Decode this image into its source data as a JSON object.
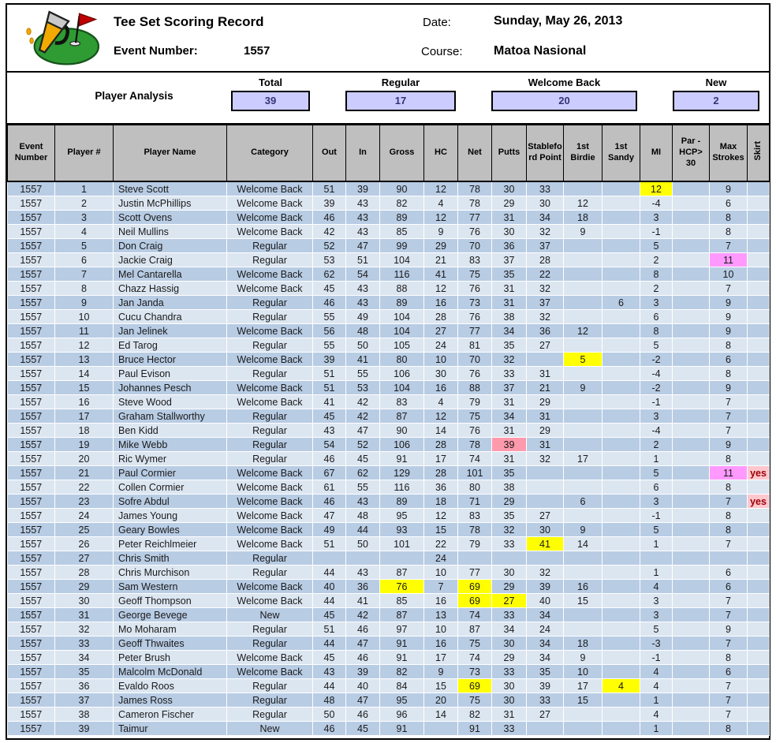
{
  "header": {
    "title": "Tee Set Scoring Record",
    "event_label": "Event Number:",
    "event_number": "1557",
    "date_label": "Date:",
    "date_value": "Sunday, May 26, 2013",
    "course_label": "Course:",
    "course_value": "Matoa Nasional",
    "logo_icon": "golf-green-with-flag-and-spilled-beer"
  },
  "analysis": {
    "title": "Player Analysis",
    "stats": [
      {
        "label": "Total",
        "value": "39"
      },
      {
        "label": "Regular",
        "value": "17"
      },
      {
        "label": "Welcome Back",
        "value": "20"
      },
      {
        "label": "New",
        "value": "2"
      }
    ]
  },
  "colors": {
    "stat_box_bg": "#CCCCFF",
    "stat_value_text": "#333377",
    "header_cell_bg": "#BFBFBF",
    "row_dark": "#B8CCE4",
    "row_light": "#DCE6F1",
    "highlight_yellow": "#FFFF00",
    "highlight_magenta": "#FF99FF",
    "highlight_rose": "#FF99AC",
    "skirt_yes_bg": "#FFC7CE",
    "skirt_yes_text": "#9C0006"
  },
  "table": {
    "columns": [
      "Event Number",
      "Player #",
      "Player Name",
      "Category",
      "Out",
      "In",
      "Gross",
      "HC",
      "Net",
      "Putts",
      "Stableford Point",
      "1st Birdie",
      "1st Sandy",
      "MI",
      "Par - HCP> 30",
      "Max Strokes",
      "Skirt"
    ],
    "col_keys": [
      "event-number",
      "player-num",
      "player-name",
      "category",
      "out",
      "in",
      "gross",
      "hc",
      "net",
      "putts",
      "stableford-point",
      "first-birdie",
      "first-sandy",
      "mi",
      "par-hcp-30",
      "max-strokes",
      "skirt"
    ],
    "rows": [
      [
        "1557",
        "1",
        "Steve Scott",
        "Welcome Back",
        "51",
        "39",
        "90",
        "12",
        "78",
        "30",
        "33",
        "",
        "",
        "12",
        "",
        "9",
        ""
      ],
      [
        "1557",
        "2",
        "Justin McPhillips",
        "Welcome Back",
        "39",
        "43",
        "82",
        "4",
        "78",
        "29",
        "30",
        "12",
        "",
        "-4",
        "",
        "6",
        ""
      ],
      [
        "1557",
        "3",
        "Scott Ovens",
        "Welcome Back",
        "46",
        "43",
        "89",
        "12",
        "77",
        "31",
        "34",
        "18",
        "",
        "3",
        "",
        "8",
        ""
      ],
      [
        "1557",
        "4",
        "Neil Mullins",
        "Welcome Back",
        "42",
        "43",
        "85",
        "9",
        "76",
        "30",
        "32",
        "9",
        "",
        "-1",
        "",
        "8",
        ""
      ],
      [
        "1557",
        "5",
        "Don Craig",
        "Regular",
        "52",
        "47",
        "99",
        "29",
        "70",
        "36",
        "37",
        "",
        "",
        "5",
        "",
        "7",
        ""
      ],
      [
        "1557",
        "6",
        "Jackie Craig",
        "Regular",
        "53",
        "51",
        "104",
        "21",
        "83",
        "37",
        "28",
        "",
        "",
        "2",
        "",
        "11",
        ""
      ],
      [
        "1557",
        "7",
        "Mel Cantarella",
        "Welcome Back",
        "62",
        "54",
        "116",
        "41",
        "75",
        "35",
        "22",
        "",
        "",
        "8",
        "",
        "10",
        ""
      ],
      [
        "1557",
        "8",
        "Chazz Hassig",
        "Welcome Back",
        "45",
        "43",
        "88",
        "12",
        "76",
        "31",
        "32",
        "",
        "",
        "2",
        "",
        "7",
        ""
      ],
      [
        "1557",
        "9",
        "Jan Janda",
        "Regular",
        "46",
        "43",
        "89",
        "16",
        "73",
        "31",
        "37",
        "",
        "6",
        "3",
        "",
        "9",
        ""
      ],
      [
        "1557",
        "10",
        "Cucu Chandra",
        "Regular",
        "55",
        "49",
        "104",
        "28",
        "76",
        "38",
        "32",
        "",
        "",
        "6",
        "",
        "9",
        ""
      ],
      [
        "1557",
        "11",
        "Jan Jelinek",
        "Welcome Back",
        "56",
        "48",
        "104",
        "27",
        "77",
        "34",
        "36",
        "12",
        "",
        "8",
        "",
        "9",
        ""
      ],
      [
        "1557",
        "12",
        "Ed Tarog",
        "Regular",
        "55",
        "50",
        "105",
        "24",
        "81",
        "35",
        "27",
        "",
        "",
        "5",
        "",
        "8",
        ""
      ],
      [
        "1557",
        "13",
        "Bruce Hector",
        "Welcome Back",
        "39",
        "41",
        "80",
        "10",
        "70",
        "32",
        "",
        "5",
        "",
        "-2",
        "",
        "6",
        ""
      ],
      [
        "1557",
        "14",
        "Paul Evison",
        "Regular",
        "51",
        "55",
        "106",
        "30",
        "76",
        "33",
        "31",
        "",
        "",
        "-4",
        "",
        "8",
        ""
      ],
      [
        "1557",
        "15",
        "Johannes Pesch",
        "Welcome Back",
        "51",
        "53",
        "104",
        "16",
        "88",
        "37",
        "21",
        "9",
        "",
        "-2",
        "",
        "9",
        ""
      ],
      [
        "1557",
        "16",
        "Steve Wood",
        "Welcome Back",
        "41",
        "42",
        "83",
        "4",
        "79",
        "31",
        "29",
        "",
        "",
        "-1",
        "",
        "7",
        ""
      ],
      [
        "1557",
        "17",
        "Graham Stallworthy",
        "Regular",
        "45",
        "42",
        "87",
        "12",
        "75",
        "34",
        "31",
        "",
        "",
        "3",
        "",
        "7",
        ""
      ],
      [
        "1557",
        "18",
        "Ben Kidd",
        "Regular",
        "43",
        "47",
        "90",
        "14",
        "76",
        "31",
        "29",
        "",
        "",
        "-4",
        "",
        "7",
        ""
      ],
      [
        "1557",
        "19",
        "Mike Webb",
        "Regular",
        "54",
        "52",
        "106",
        "28",
        "78",
        "39",
        "31",
        "",
        "",
        "2",
        "",
        "9",
        ""
      ],
      [
        "1557",
        "20",
        "Ric Wymer",
        "Regular",
        "46",
        "45",
        "91",
        "17",
        "74",
        "31",
        "32",
        "17",
        "",
        "1",
        "",
        "8",
        ""
      ],
      [
        "1557",
        "21",
        "Paul Cormier",
        "Welcome Back",
        "67",
        "62",
        "129",
        "28",
        "101",
        "35",
        "",
        "",
        "",
        "5",
        "",
        "11",
        "yes"
      ],
      [
        "1557",
        "22",
        "Collen Cormier",
        "Welcome Back",
        "61",
        "55",
        "116",
        "36",
        "80",
        "38",
        "",
        "",
        "",
        "6",
        "",
        "8",
        ""
      ],
      [
        "1557",
        "23",
        "Sofre Abdul",
        "Welcome Back",
        "46",
        "43",
        "89",
        "18",
        "71",
        "29",
        "",
        "6",
        "",
        "3",
        "",
        "7",
        "yes"
      ],
      [
        "1557",
        "24",
        "James Young",
        "Welcome Back",
        "47",
        "48",
        "95",
        "12",
        "83",
        "35",
        "27",
        "",
        "",
        "-1",
        "",
        "8",
        ""
      ],
      [
        "1557",
        "25",
        "Geary Bowles",
        "Welcome Back",
        "49",
        "44",
        "93",
        "15",
        "78",
        "32",
        "30",
        "9",
        "",
        "5",
        "",
        "8",
        ""
      ],
      [
        "1557",
        "26",
        "Peter Reichlmeier",
        "Welcome Back",
        "51",
        "50",
        "101",
        "22",
        "79",
        "33",
        "41",
        "14",
        "",
        "1",
        "",
        "7",
        ""
      ],
      [
        "1557",
        "27",
        "Chris Smith",
        "Regular",
        "",
        "",
        "",
        "24",
        "",
        "",
        "",
        "",
        "",
        "",
        "",
        "",
        ""
      ],
      [
        "1557",
        "28",
        "Chris Murchison",
        "Regular",
        "44",
        "43",
        "87",
        "10",
        "77",
        "30",
        "32",
        "",
        "",
        "1",
        "",
        "6",
        ""
      ],
      [
        "1557",
        "29",
        "Sam Western",
        "Welcome Back",
        "40",
        "36",
        "76",
        "7",
        "69",
        "29",
        "39",
        "16",
        "",
        "4",
        "",
        "6",
        ""
      ],
      [
        "1557",
        "30",
        "Geoff Thompson",
        "Welcome Back",
        "44",
        "41",
        "85",
        "16",
        "69",
        "27",
        "40",
        "15",
        "",
        "3",
        "",
        "7",
        ""
      ],
      [
        "1557",
        "31",
        "George Bevege",
        "New",
        "45",
        "42",
        "87",
        "13",
        "74",
        "33",
        "34",
        "",
        "",
        "3",
        "",
        "7",
        ""
      ],
      [
        "1557",
        "32",
        "Mo Moharam",
        "Regular",
        "51",
        "46",
        "97",
        "10",
        "87",
        "34",
        "24",
        "",
        "",
        "5",
        "",
        "9",
        ""
      ],
      [
        "1557",
        "33",
        "Geoff Thwaites",
        "Regular",
        "44",
        "47",
        "91",
        "16",
        "75",
        "30",
        "34",
        "18",
        "",
        "-3",
        "",
        "7",
        ""
      ],
      [
        "1557",
        "34",
        "Peter Brush",
        "Welcome Back",
        "45",
        "46",
        "91",
        "17",
        "74",
        "29",
        "34",
        "9",
        "",
        "-1",
        "",
        "8",
        ""
      ],
      [
        "1557",
        "35",
        "Malcolm McDonald",
        "Welcome Back",
        "43",
        "39",
        "82",
        "9",
        "73",
        "33",
        "35",
        "10",
        "",
        "4",
        "",
        "6",
        ""
      ],
      [
        "1557",
        "36",
        "Evaldo Roos",
        "Regular",
        "44",
        "40",
        "84",
        "15",
        "69",
        "30",
        "39",
        "17",
        "4",
        "4",
        "",
        "7",
        ""
      ],
      [
        "1557",
        "37",
        "James Ross",
        "Regular",
        "48",
        "47",
        "95",
        "20",
        "75",
        "30",
        "33",
        "15",
        "",
        "1",
        "",
        "7",
        ""
      ],
      [
        "1557",
        "38",
        "Cameron Fischer",
        "Regular",
        "50",
        "46",
        "96",
        "14",
        "82",
        "31",
        "27",
        "",
        "",
        "4",
        "",
        "7",
        ""
      ],
      [
        "1557",
        "39",
        "Taimur",
        "New",
        "46",
        "45",
        "91",
        "",
        "91",
        "33",
        "",
        "",
        "",
        "1",
        "",
        "8",
        ""
      ]
    ],
    "highlights": [
      {
        "r": 0,
        "c": 13,
        "style": "yellow"
      },
      {
        "r": 5,
        "c": 15,
        "style": "magenta"
      },
      {
        "r": 12,
        "c": 11,
        "style": "yellow"
      },
      {
        "r": 18,
        "c": 9,
        "style": "rose"
      },
      {
        "r": 20,
        "c": 15,
        "style": "magenta"
      },
      {
        "r": 20,
        "c": 16,
        "style": "bad"
      },
      {
        "r": 22,
        "c": 16,
        "style": "bad"
      },
      {
        "r": 25,
        "c": 10,
        "style": "yellow"
      },
      {
        "r": 28,
        "c": 6,
        "style": "yellow"
      },
      {
        "r": 28,
        "c": 8,
        "style": "yellow"
      },
      {
        "r": 29,
        "c": 8,
        "style": "yellow"
      },
      {
        "r": 29,
        "c": 9,
        "style": "yellow"
      },
      {
        "r": 35,
        "c": 8,
        "style": "yellow"
      },
      {
        "r": 35,
        "c": 12,
        "style": "yellow"
      }
    ]
  }
}
